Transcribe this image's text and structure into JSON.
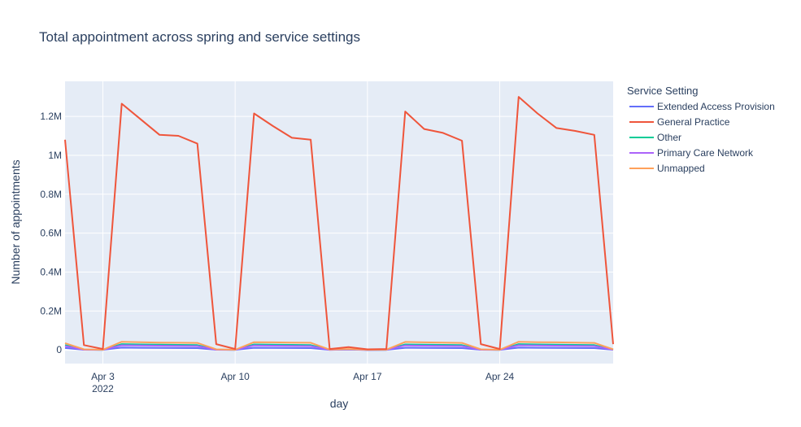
{
  "chart_data": {
    "type": "line",
    "title": "Total appointment across spring and service settings",
    "xlabel": "day",
    "ylabel": "Number of appointments",
    "x_start": "2022-04-01",
    "x_end": "2022-04-30",
    "x_ticks": [
      {
        "date": "2022-04-03",
        "label": "Apr 3",
        "sub": "2022"
      },
      {
        "date": "2022-04-10",
        "label": "Apr 10",
        "sub": ""
      },
      {
        "date": "2022-04-17",
        "label": "Apr 17",
        "sub": ""
      },
      {
        "date": "2022-04-24",
        "label": "Apr 24",
        "sub": ""
      }
    ],
    "y_ticks": [
      {
        "value": 0,
        "label": "0"
      },
      {
        "value": 200000,
        "label": "0.2M"
      },
      {
        "value": 400000,
        "label": "0.4M"
      },
      {
        "value": 600000,
        "label": "0.6M"
      },
      {
        "value": 800000,
        "label": "0.8M"
      },
      {
        "value": 1000000,
        "label": "1M"
      },
      {
        "value": 1200000,
        "label": "1.2M"
      }
    ],
    "ylim": [
      -70000,
      1380000
    ],
    "grid": true,
    "legend_title": "Service Setting",
    "legend_position": "right",
    "x": [
      "2022-04-01",
      "2022-04-02",
      "2022-04-03",
      "2022-04-04",
      "2022-04-05",
      "2022-04-06",
      "2022-04-07",
      "2022-04-08",
      "2022-04-09",
      "2022-04-10",
      "2022-04-11",
      "2022-04-12",
      "2022-04-13",
      "2022-04-14",
      "2022-04-15",
      "2022-04-16",
      "2022-04-17",
      "2022-04-18",
      "2022-04-19",
      "2022-04-20",
      "2022-04-21",
      "2022-04-22",
      "2022-04-23",
      "2022-04-24",
      "2022-04-25",
      "2022-04-26",
      "2022-04-27",
      "2022-04-28",
      "2022-04-29",
      "2022-04-30"
    ],
    "series": [
      {
        "name": "Extended Access Provision",
        "color": "#636efa",
        "values": [
          10000,
          1000,
          500,
          12000,
          11000,
          10500,
          10000,
          9500,
          1000,
          500,
          11000,
          10500,
          10000,
          9500,
          800,
          2000,
          400,
          500,
          11000,
          10500,
          10000,
          9500,
          1000,
          500,
          12000,
          11000,
          10500,
          10000,
          9500,
          1000
        ]
      },
      {
        "name": "General Practice",
        "color": "#ef553b",
        "values": [
          1080000,
          25000,
          5000,
          1265000,
          1185000,
          1105000,
          1100000,
          1060000,
          30000,
          5000,
          1215000,
          1150000,
          1090000,
          1080000,
          5000,
          15000,
          3000,
          5000,
          1225000,
          1135000,
          1115000,
          1075000,
          30000,
          5000,
          1300000,
          1215000,
          1140000,
          1125000,
          1105000,
          30000
        ]
      },
      {
        "name": "Other",
        "color": "#00cc96",
        "values": [
          25000,
          1500,
          500,
          30000,
          28000,
          27000,
          26000,
          25000,
          1500,
          500,
          28000,
          27000,
          26000,
          25000,
          1000,
          3000,
          500,
          700,
          28000,
          27000,
          26000,
          25000,
          1500,
          500,
          30000,
          28000,
          27000,
          26000,
          25000,
          1500
        ]
      },
      {
        "name": "Primary Care Network",
        "color": "#ab63fa",
        "values": [
          20000,
          1000,
          500,
          24000,
          23000,
          22000,
          21000,
          20000,
          1000,
          500,
          23000,
          22000,
          21000,
          20000,
          800,
          2500,
          400,
          500,
          23000,
          22000,
          21000,
          20000,
          1000,
          500,
          24000,
          23000,
          22000,
          21000,
          20000,
          1000
        ]
      },
      {
        "name": "Unmapped",
        "color": "#ffa15a",
        "values": [
          35000,
          3000,
          1000,
          42000,
          40000,
          38000,
          37000,
          36000,
          3000,
          1000,
          40000,
          39000,
          38000,
          37000,
          2000,
          5000,
          1000,
          1500,
          41000,
          39000,
          38000,
          36000,
          3000,
          1000,
          42000,
          40000,
          39000,
          38000,
          36000,
          3000
        ]
      }
    ]
  }
}
